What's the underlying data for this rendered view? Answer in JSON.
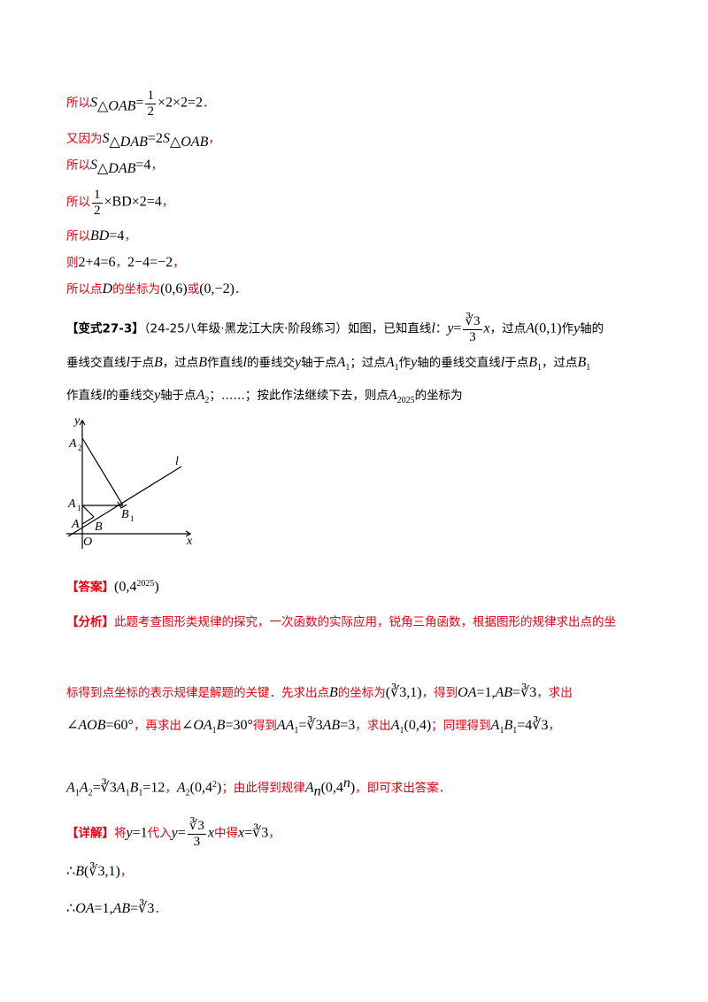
{
  "lines": [
    [
      "所以",
      "S",
      "△OAB",
      "=",
      "1",
      "2",
      "×2×2=2",
      "．"
    ],
    [
      "又因为",
      "S",
      "△DAB",
      "=2",
      "S",
      "△OAB",
      "，"
    ],
    [
      "所以",
      "S",
      "△DAB",
      "=4",
      "，"
    ],
    [
      "所以",
      "1",
      "2",
      "×BD×2=4",
      "，"
    ],
    [
      "所以",
      "BD",
      "=4",
      "，"
    ],
    [
      "则",
      "2+4=6",
      "，",
      "2−4=−2",
      "，"
    ],
    [
      "所以点",
      "D",
      "的坐标为",
      "(0,6)",
      "或",
      "(0,−2)",
      "．"
    ],
    [
      "【变式27-3】",
      "（24-25八年级·黑龙江大庆·阶段练习）如图，已知直线",
      "l",
      "：",
      "y",
      "=",
      "∛3",
      "3",
      "x",
      "，过点",
      "A",
      "(0,1)",
      "作",
      "y",
      "轴的"
    ],
    [
      "垂线交直线",
      "l",
      "于点",
      "B",
      "，过点",
      "B",
      "作直线",
      "l",
      "的垂线交",
      "y",
      "轴于点",
      "A",
      "1",
      "；过点",
      "A",
      "1",
      "作",
      "y",
      "轴的垂线交直线",
      "l",
      "于点",
      "B",
      "1",
      "，过点",
      "B",
      "1"
    ],
    [
      "作直线",
      "l",
      "的垂线交",
      "y",
      "轴于点",
      "A",
      "2",
      "；……；按此作法继续下去，则点",
      "A",
      "2025",
      "的坐标为"
    ],
    [
      "【答案】",
      "(0,4",
      "2025",
      ")"
    ],
    [
      "【分析】",
      "此题考查图形类规律的探究，一次函数的实际应用，锐角三角函数，根据图形的规律求出点的坐"
    ],
    [
      "标得到点坐标的表示规律是解题的关键．先求出点",
      "B",
      "的坐标为",
      "(∛3,1)",
      "，得到",
      "OA",
      "=1,",
      "AB",
      "=∛3",
      "，求出"
    ],
    [
      "∠",
      "AOB",
      "=60°",
      "，再求出",
      "∠",
      "OA",
      "1",
      "B",
      "=30°",
      "得到",
      "AA",
      "1",
      "=∛3",
      "AB",
      "=3",
      "，求出",
      "A",
      "1",
      "(0,4)",
      "；同理得到",
      "A",
      "1",
      "B",
      "1",
      "=4∛3",
      "，"
    ],
    [
      "A",
      "1",
      "A",
      "2",
      "=∛3",
      "A",
      "1",
      "B",
      "1",
      "=12",
      "，",
      "A",
      "2",
      "(0,4",
      "2",
      ")",
      "；由此得到规律",
      "A",
      "n",
      "(0,4",
      "n",
      ")",
      "，即可求出答案．"
    ],
    [
      "【详解】",
      "将",
      "y",
      "=1",
      "代入",
      "y",
      "=",
      "∛3",
      "3",
      "x",
      "中得",
      "x",
      "=∛3",
      "，"
    ],
    [
      "∴",
      "B",
      "(∛3,1)",
      "，"
    ],
    [
      "∴",
      "OA",
      "=1,",
      "AB",
      "=∛3",
      "．"
    ]
  ],
  "figure": {
    "y": "y",
    "A2": "A",
    "A2s": "2",
    "l": "l",
    "A1": "A",
    "A1s": "1",
    "B1": "B",
    "B1s": "1",
    "A": "A",
    "B": "B",
    "O": "O",
    "x": "x"
  }
}
